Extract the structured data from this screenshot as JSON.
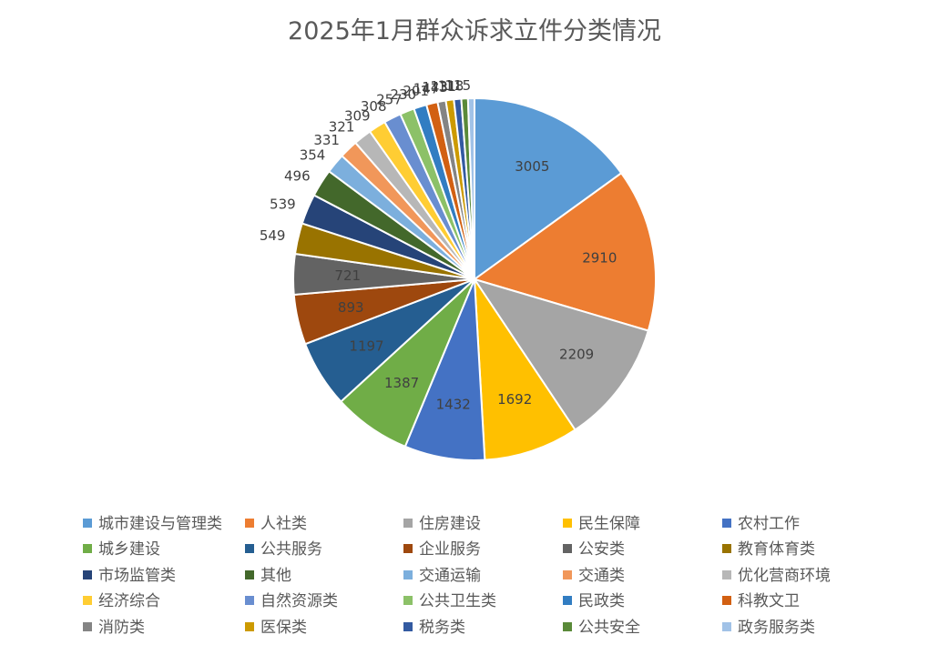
{
  "chart_data": {
    "type": "pie",
    "title": "2025年1月群众诉求立件分类情况",
    "legend_position": "bottom",
    "categories": [
      "城市建设与管理类",
      "人社类",
      "住房建设",
      "民生保障",
      "农村工作",
      "城乡建设",
      "公共服务",
      "企业服务",
      "公安类",
      "教育体育类",
      "市场监管类",
      "其他",
      "交通运输",
      "交通类",
      "优化营商环境",
      "经济综合",
      "自然资源类",
      "公共卫生类",
      "民政类",
      "科教文卫",
      "消防类",
      "医保类",
      "税务类",
      "公共安全",
      "政务服务类"
    ],
    "values": [
      3005,
      2910,
      2209,
      1692,
      1432,
      1387,
      1197,
      893,
      721,
      549,
      539,
      496,
      354,
      331,
      321,
      309,
      308,
      257,
      230,
      201,
      147,
      143,
      131,
      118,
      115
    ],
    "data_labels": [
      "3005",
      "2910",
      "2209",
      "1692",
      "1432",
      "1387",
      "1197",
      "893",
      "721",
      "549",
      "539",
      "496",
      "354",
      "331",
      "321",
      "309",
      "308",
      "257",
      "230",
      "201",
      "147",
      "143",
      "131",
      "118",
      "115"
    ],
    "colors": [
      "#5B9BD5",
      "#ED7D31",
      "#A5A5A5",
      "#FFC000",
      "#4472C4",
      "#70AD47",
      "#255E91",
      "#9E480E",
      "#636363",
      "#997300",
      "#264478",
      "#43682B",
      "#7CAFDD",
      "#F1975A",
      "#B7B7B7",
      "#FFCD33",
      "#698ED0",
      "#8CC168",
      "#327DC2",
      "#D26012",
      "#848484",
      "#CC9A00",
      "#335AA1",
      "#5A8A39",
      "#A1C2E7"
    ]
  }
}
